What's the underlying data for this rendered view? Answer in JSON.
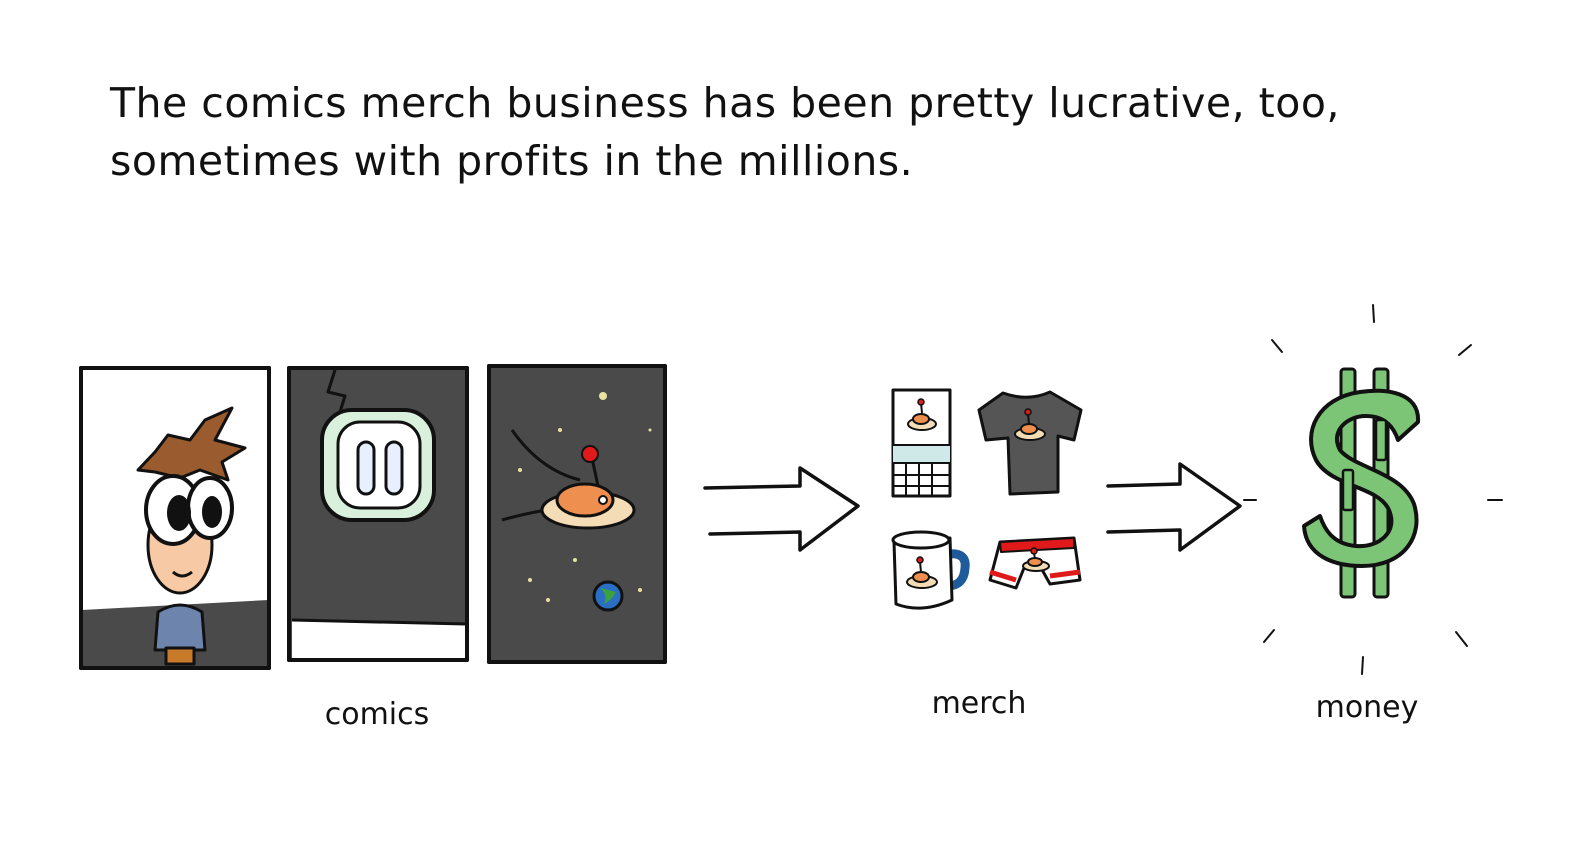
{
  "caption": {
    "line1": "The comics merch business has been pretty lucrative, too,",
    "line2": "sometimes with profits in the millions."
  },
  "labels": {
    "comics": "comics",
    "merch": "merch",
    "money": "money"
  },
  "colors": {
    "panel_dark": "#4a4a4a",
    "ink": "#111111",
    "dollar_green": "#7cc576",
    "ufo_tan": "#f3dcb6",
    "ufo_orange": "#ee8f4f",
    "antenna_red": "#e01a1a",
    "hair_brown": "#9a5b2e",
    "shirt_blue": "#6d84ad",
    "mug_blue": "#1f5a9a",
    "calendar_teal": "#cfe8e8"
  },
  "icons": {
    "comic_panels": "comic-strip-icon",
    "arrow": "arrow-right-icon",
    "merch": "merchandise-icon",
    "money": "dollar-sign-icon"
  }
}
